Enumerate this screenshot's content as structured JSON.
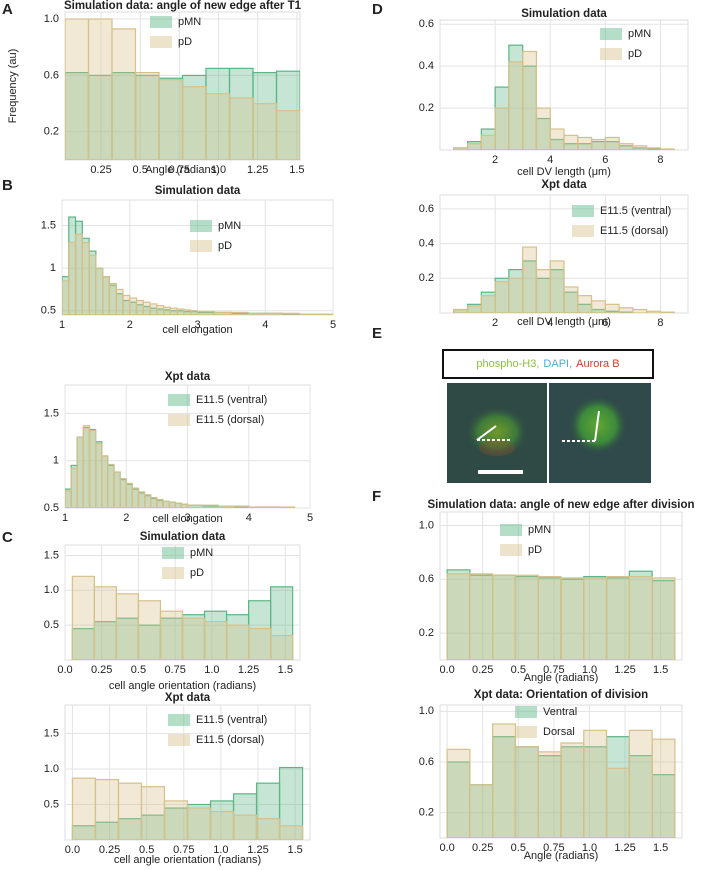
{
  "panels": [
    "A",
    "B",
    "C",
    "D",
    "E",
    "F"
  ],
  "panel_e": {
    "stains": [
      {
        "text": "phospho-H3,",
        "color": "#8bbf3f"
      },
      {
        "text": "DAPI,",
        "color": "#4fa9d6"
      },
      {
        "text": "Aurora B",
        "color": "#d33a2c"
      }
    ]
  },
  "chart_data": [
    {
      "type": "histogram",
      "title": "Simulation data: angle of new edge after T1",
      "xlabel": "Angle (radians)",
      "ylabel": "Frequency (au)",
      "bins": [
        0.02,
        0.17,
        0.32,
        0.47,
        0.62,
        0.77,
        0.92,
        1.07,
        1.22,
        1.37,
        1.52
      ],
      "series": [
        {
          "name": "pMN",
          "color": "#5bb585",
          "values": [
            0.62,
            0.6,
            0.62,
            0.6,
            0.58,
            0.6,
            0.65,
            0.65,
            0.62,
            0.63
          ]
        },
        {
          "name": "pD",
          "color": "#d6c08a",
          "values": [
            1.0,
            1.0,
            0.93,
            0.62,
            0.57,
            0.52,
            0.47,
            0.44,
            0.4,
            0.35
          ]
        }
      ],
      "xlim": [
        0.02,
        1.52
      ],
      "ylim": [
        0,
        1.05
      ],
      "xticks": [
        0.25,
        0.5,
        0.75,
        {
          "value": 1,
          "label": "1.0"
        },
        1.25,
        1.5
      ],
      "yticks": [
        0.2,
        0.6,
        {
          "value": 1,
          "label": "1.0"
        }
      ],
      "grid": true
    },
    {
      "type": "histogram",
      "title": "Simulation data",
      "xlabel": "cell elongation",
      "bins": [
        1.0,
        1.1,
        1.2,
        1.3,
        1.4,
        1.5,
        1.6,
        1.7,
        1.8,
        1.9,
        2.0,
        2.1,
        2.2,
        2.3,
        2.4,
        2.5,
        2.6,
        2.7,
        2.8,
        2.9,
        3.0,
        3.25,
        3.5,
        3.75,
        4.0,
        4.25,
        4.5,
        4.75,
        5.0
      ],
      "series": [
        {
          "name": "pMN",
          "color": "#5bb585",
          "values": [
            0.9,
            1.6,
            1.55,
            1.35,
            1.2,
            1.0,
            0.9,
            0.8,
            0.7,
            0.62,
            0.6,
            0.57,
            0.55,
            0.53,
            0.52,
            0.51,
            0.5,
            0.5,
            0.49,
            0.49,
            0.48,
            0.48,
            0.47,
            0.47,
            0.47,
            0.46,
            0.46,
            0.46
          ]
        },
        {
          "name": "pD",
          "color": "#d6c08a",
          "values": [
            0.85,
            1.3,
            1.4,
            1.3,
            1.15,
            1.0,
            0.9,
            0.82,
            0.75,
            0.68,
            0.65,
            0.62,
            0.6,
            0.58,
            0.56,
            0.54,
            0.53,
            0.52,
            0.51,
            0.5,
            0.49,
            0.48,
            0.48,
            0.47,
            0.47,
            0.47,
            0.46,
            0.46
          ]
        }
      ],
      "xlim": [
        1,
        5
      ],
      "ylim": [
        0.45,
        1.8
      ],
      "xticks": [
        1,
        2,
        3,
        4,
        5
      ],
      "yticks": [
        0.5,
        1,
        1.5
      ],
      "grid": true
    },
    {
      "type": "histogram",
      "title": "Xpt data",
      "xlabel": "cell elongation",
      "bins": [
        1.0,
        1.1,
        1.2,
        1.3,
        1.4,
        1.5,
        1.6,
        1.7,
        1.8,
        1.9,
        2.0,
        2.1,
        2.2,
        2.3,
        2.4,
        2.5,
        2.6,
        2.7,
        2.8,
        2.9,
        3.0,
        3.25,
        3.5,
        3.75,
        4.0,
        4.25,
        4.5,
        4.75,
        5.0
      ],
      "series": [
        {
          "name": "E11.5 (ventral)",
          "color": "#5bb585",
          "values": [
            0.7,
            0.95,
            1.25,
            1.35,
            1.33,
            1.2,
            1.05,
            0.95,
            0.88,
            0.8,
            0.75,
            0.7,
            0.66,
            0.63,
            0.6,
            0.58,
            0.57,
            0.56,
            0.55,
            0.54,
            0.53,
            0.52,
            0.52,
            0.51,
            0.51,
            0.51,
            0.5,
            0.5
          ]
        },
        {
          "name": "E11.5 (dorsal)",
          "color": "#d6c08a",
          "values": [
            0.68,
            0.92,
            1.25,
            1.37,
            1.32,
            1.18,
            1.05,
            0.96,
            0.88,
            0.81,
            0.76,
            0.71,
            0.67,
            0.64,
            0.61,
            0.59,
            0.57,
            0.56,
            0.55,
            0.54,
            0.53,
            0.53,
            0.52,
            0.52,
            0.51,
            0.51,
            0.51,
            0.5
          ]
        }
      ],
      "xlim": [
        1,
        5
      ],
      "ylim": [
        0.5,
        1.8
      ],
      "xticks": [
        1,
        2,
        3,
        4,
        5
      ],
      "yticks": [
        0.5,
        1,
        1.5
      ],
      "grid": true
    },
    {
      "type": "histogram",
      "title": "Simulation data",
      "xlabel": "cell angle orientation (radians)",
      "bins": [
        0.05,
        0.2,
        0.35,
        0.5,
        0.65,
        0.8,
        0.95,
        1.1,
        1.25,
        1.4,
        1.55
      ],
      "series": [
        {
          "name": "pMN",
          "color": "#5bb585",
          "values": [
            0.45,
            0.55,
            0.6,
            0.5,
            0.6,
            0.65,
            0.7,
            0.65,
            0.85,
            1.05
          ]
        },
        {
          "name": "pD",
          "color": "#d6c08a",
          "values": [
            1.2,
            1.05,
            0.95,
            0.85,
            0.7,
            0.6,
            0.55,
            0.5,
            0.45,
            0.35
          ]
        }
      ],
      "xlim": [
        0,
        1.6
      ],
      "ylim": [
        0,
        1.65
      ],
      "xticks": [
        {
          "value": 0,
          "label": "0.0"
        },
        0.25,
        0.5,
        0.75,
        {
          "value": 1,
          "label": "1.0"
        },
        1.25,
        1.5
      ],
      "yticks": [
        0.5,
        {
          "value": 1,
          "label": "1.0"
        },
        1.5
      ],
      "grid": true
    },
    {
      "type": "histogram",
      "title": "Xpt data",
      "xlabel": "cell angle orientation (radians)",
      "bins": [
        0,
        0.155,
        0.31,
        0.465,
        0.62,
        0.775,
        0.93,
        1.085,
        1.24,
        1.395,
        1.55
      ],
      "series": [
        {
          "name": "E11.5 (ventral)",
          "color": "#5bb585",
          "values": [
            0.2,
            0.25,
            0.3,
            0.35,
            0.45,
            0.5,
            0.55,
            0.65,
            0.8,
            1.02
          ]
        },
        {
          "name": "E11.5 (dorsal)",
          "color": "#d6c08a",
          "values": [
            0.87,
            0.85,
            0.8,
            0.75,
            0.55,
            0.45,
            0.4,
            0.35,
            0.3,
            0.2
          ]
        }
      ],
      "xlim": [
        -0.05,
        1.6
      ],
      "ylim": [
        0,
        1.9
      ],
      "xticks": [
        {
          "value": 0,
          "label": "0.0"
        },
        0.25,
        0.5,
        0.75,
        {
          "value": 1,
          "label": "1.0"
        },
        1.25,
        1.5
      ],
      "yticks": [
        0.5,
        {
          "value": 1,
          "label": "1.0"
        },
        1.5
      ],
      "grid": true
    },
    {
      "type": "histogram",
      "title": "Simulation data",
      "xlabel": "cell DV length (μm)",
      "bins": [
        0.5,
        1.0,
        1.5,
        2.0,
        2.5,
        3.0,
        3.5,
        4.0,
        4.5,
        5.0,
        5.5,
        6.0,
        6.5,
        7.0,
        7.5,
        8.0,
        8.5
      ],
      "series": [
        {
          "name": "pMN",
          "color": "#5bb585",
          "values": [
            0.01,
            0.04,
            0.1,
            0.3,
            0.5,
            0.4,
            0.15,
            0.05,
            0.03,
            0.03,
            0.04,
            0.04,
            0.02,
            0.01,
            0.005,
            0
          ]
        },
        {
          "name": "pD",
          "color": "#d6c08a",
          "values": [
            0.01,
            0.03,
            0.07,
            0.2,
            0.42,
            0.47,
            0.2,
            0.1,
            0.07,
            0.06,
            0.05,
            0.06,
            0.03,
            0.02,
            0.01,
            0.005
          ]
        }
      ],
      "xlim": [
        0,
        9
      ],
      "ylim": [
        0,
        0.62
      ],
      "xticks": [
        2,
        4,
        6,
        8
      ],
      "yticks": [
        0.2,
        0.4,
        0.6
      ],
      "grid": true
    },
    {
      "type": "histogram",
      "title": "Xpt data",
      "xlabel": "cell DV length (μm)",
      "bins": [
        0.5,
        1.0,
        1.5,
        2.0,
        2.5,
        3.0,
        3.5,
        4.0,
        4.5,
        5.0,
        5.5,
        6.0,
        6.5,
        7.0,
        7.5,
        8.0,
        8.5
      ],
      "series": [
        {
          "name": "E11.5 (ventral)",
          "color": "#5bb585",
          "values": [
            0.02,
            0.05,
            0.12,
            0.2,
            0.25,
            0.3,
            0.2,
            0.25,
            0.12,
            0.05,
            0.02,
            0.01,
            0.005,
            0,
            0,
            0
          ]
        },
        {
          "name": "E11.5 (dorsal)",
          "color": "#d6c08a",
          "values": [
            0.02,
            0.04,
            0.1,
            0.18,
            0.2,
            0.38,
            0.25,
            0.3,
            0.15,
            0.1,
            0.07,
            0.05,
            0.03,
            0.02,
            0.01,
            0.005
          ]
        }
      ],
      "xlim": [
        0,
        9
      ],
      "ylim": [
        0,
        0.68
      ],
      "xticks": [
        2,
        4,
        6,
        8
      ],
      "yticks": [
        0.2,
        0.4,
        0.6
      ],
      "grid": true
    },
    {
      "type": "histogram",
      "title": "Simulation data: angle of new edge after division",
      "xlabel": "Angle (radians)",
      "bins": [
        0,
        0.16,
        0.32,
        0.48,
        0.64,
        0.8,
        0.96,
        1.12,
        1.28,
        1.44,
        1.6
      ],
      "series": [
        {
          "name": "pMN",
          "color": "#5bb585",
          "values": [
            0.67,
            0.63,
            0.63,
            0.62,
            0.61,
            0.6,
            0.62,
            0.61,
            0.66,
            0.59
          ]
        },
        {
          "name": "pD",
          "color": "#d6c08a",
          "values": [
            0.64,
            0.64,
            0.63,
            0.63,
            0.62,
            0.61,
            0.61,
            0.62,
            0.62,
            0.61
          ]
        }
      ],
      "xlim": [
        -0.05,
        1.65
      ],
      "ylim": [
        0,
        1.1
      ],
      "xticks": [
        {
          "value": 0,
          "label": "0.0"
        },
        0.25,
        0.5,
        0.75,
        {
          "value": 1,
          "label": "1.0"
        },
        1.25,
        1.5
      ],
      "yticks": [
        0.2,
        0.6,
        {
          "value": 1,
          "label": "1.0"
        }
      ],
      "grid": true
    },
    {
      "type": "histogram",
      "title": "Xpt data: Orientation of division",
      "xlabel": "Angle (radians)",
      "bins": [
        0,
        0.16,
        0.32,
        0.48,
        0.64,
        0.8,
        0.96,
        1.12,
        1.28,
        1.44,
        1.6
      ],
      "series": [
        {
          "name": "Ventral",
          "color": "#5bb585",
          "values": [
            0.6,
            0.42,
            0.8,
            0.72,
            0.65,
            0.72,
            0.72,
            0.8,
            0.65,
            0.5
          ]
        },
        {
          "name": "Dorsal",
          "color": "#d6c08a",
          "values": [
            0.7,
            0.42,
            0.9,
            0.72,
            0.68,
            0.75,
            0.85,
            0.55,
            0.85,
            0.78
          ]
        }
      ],
      "xlim": [
        -0.05,
        1.65
      ],
      "ylim": [
        0,
        1.05
      ],
      "xticks": [
        {
          "value": 0,
          "label": "0.0"
        },
        0.25,
        0.5,
        0.75,
        {
          "value": 1,
          "label": "1.0"
        },
        1.25,
        1.5
      ],
      "yticks": [
        0.2,
        0.6,
        {
          "value": 1,
          "label": "1.0"
        }
      ],
      "grid": true
    }
  ]
}
